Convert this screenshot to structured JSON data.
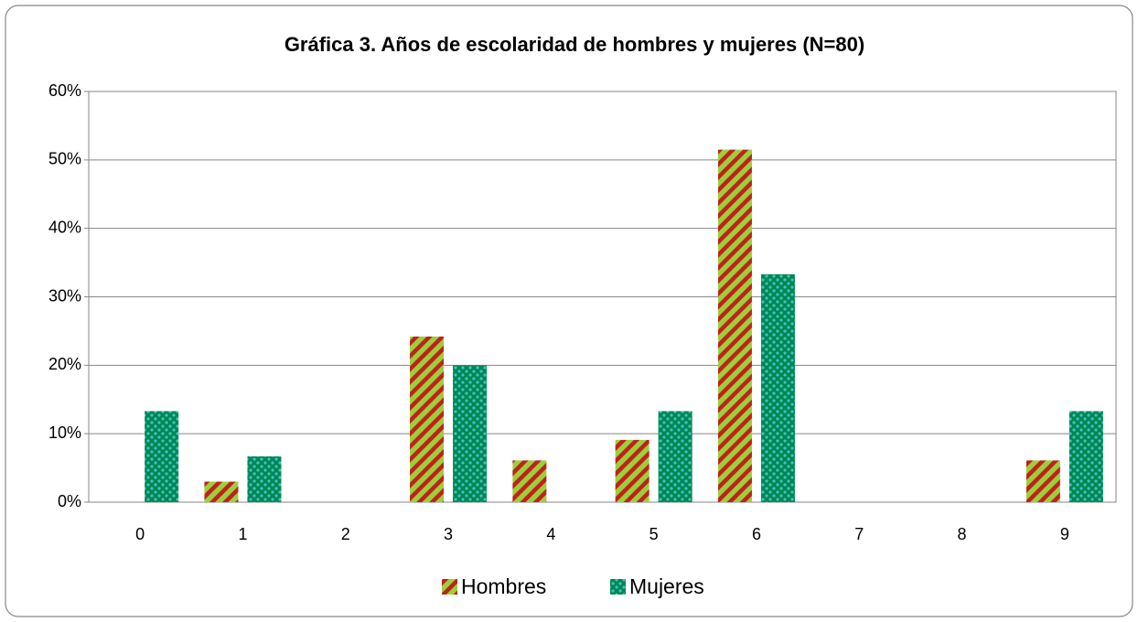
{
  "chart_data": {
    "type": "bar",
    "title": "Gráfica 3. Años de escolaridad de hombres y mujeres (N=80)",
    "categories": [
      "0",
      "1",
      "2",
      "3",
      "4",
      "5",
      "6",
      "7",
      "8",
      "9"
    ],
    "series": [
      {
        "name": "Hombres",
        "color": "#9bcf3c",
        "values": [
          0,
          3,
          0,
          24.2,
          6.1,
          9.1,
          51.5,
          0,
          0,
          6.1
        ]
      },
      {
        "name": "Mujeres",
        "color": "#00874f",
        "values": [
          13.3,
          6.7,
          0,
          20,
          0,
          13.3,
          33.3,
          0,
          0,
          13.3
        ]
      }
    ],
    "ylim": [
      0,
      60
    ],
    "yticks": [
      {
        "value": 0,
        "label": "0%"
      },
      {
        "value": 10,
        "label": "10%"
      },
      {
        "value": 20,
        "label": "20%"
      },
      {
        "value": 30,
        "label": "30%"
      },
      {
        "value": 40,
        "label": "40%"
      },
      {
        "value": 50,
        "label": "50%"
      },
      {
        "value": 60,
        "label": "60%"
      }
    ],
    "grid": true,
    "legend": "bottom"
  }
}
